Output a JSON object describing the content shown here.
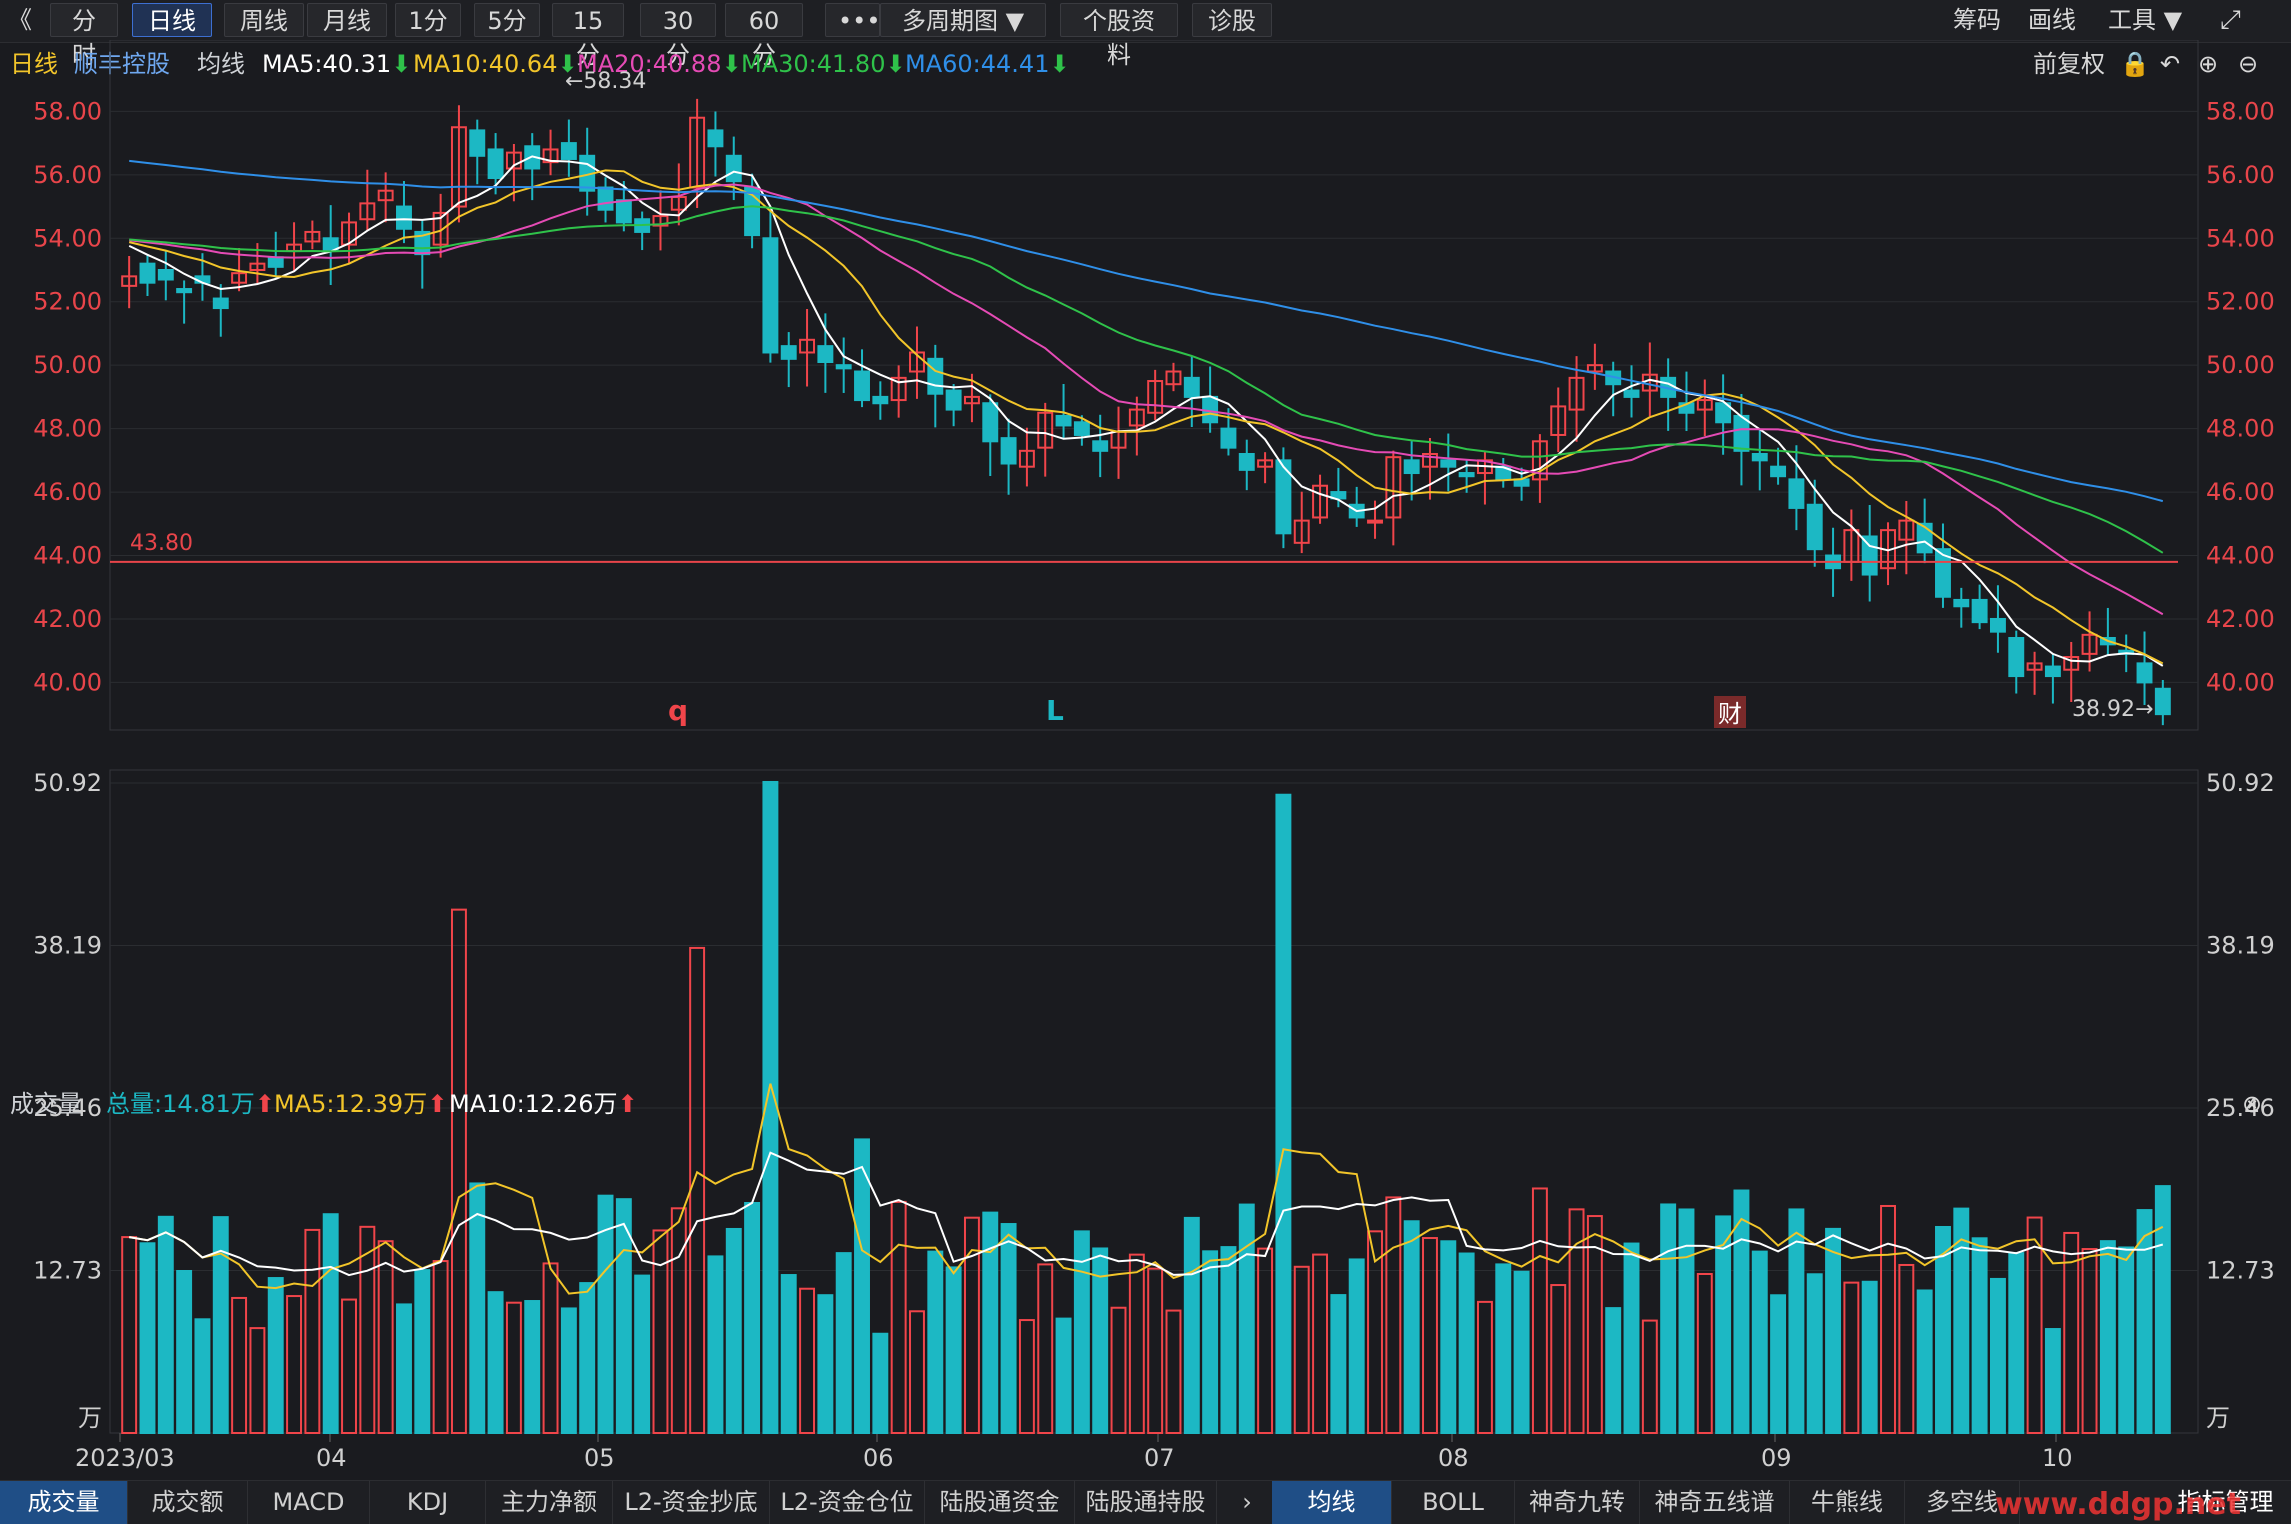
{
  "toolbar": {
    "back": "《",
    "buttons": [
      "分时",
      "日线",
      "周线",
      "月线",
      "1分",
      "5分",
      "15分",
      "30分",
      "60分",
      "•••",
      "多周期图 ▼",
      "个股资料",
      "诊股"
    ],
    "active_index": 1,
    "right": [
      "筹码",
      "画线",
      "工具 ▼"
    ]
  },
  "info": {
    "period": "日线",
    "stock": "顺丰控股",
    "ma_label": "均线",
    "ma5": "MA5:40.31",
    "ma10": "MA10:40.64",
    "ma20": "MA20:40.88",
    "ma30": "MA30:41.80",
    "ma60": "MA60:44.41",
    "fq": "前复权"
  },
  "colors": {
    "up": "#f0454a",
    "down": "#1cb8c4",
    "ma5": "#ffffff",
    "ma10": "#f2c52a",
    "ma20": "#e54bb5",
    "ma30": "#2fc24a",
    "ma60": "#2f8fe8",
    "axis": "#e8454a"
  },
  "volume_bar": {
    "title": "成交量",
    "total": "总量:14.81万",
    "ma5": "MA5:12.39万",
    "ma10": "MA10:12.26万"
  },
  "price_axis": [
    "58.00",
    "56.00",
    "54.00",
    "52.00",
    "50.00",
    "48.00",
    "46.00",
    "44.00",
    "42.00",
    "40.00"
  ],
  "volume_axis": [
    "50.92",
    "38.19",
    "25.46",
    "12.73",
    "万"
  ],
  "x_axis": [
    "2023/03",
    "04",
    "05",
    "06",
    "07",
    "08",
    "09",
    "10"
  ],
  "annotations": {
    "high": "←58.34",
    "low": "38.92→",
    "hline": "43.80",
    "mark_q": "q",
    "mark_l": "L",
    "mark_cai": "财"
  },
  "bottom_tabs": [
    "成交量",
    "成交额",
    "MACD",
    "KDJ",
    "主力净额",
    "L2-资金抄底",
    "L2-资金仓位",
    "陆股通资金",
    "陆股通持股"
  ],
  "bottom_tabs2": [
    "均线",
    "BOLL",
    "神奇九转",
    "神奇五线谱",
    "牛熊线",
    "多空线"
  ],
  "bottom_right": "指标管理",
  "watermark": "www.ddgp.net",
  "chart_data": {
    "type": "candlestick",
    "close_points": [
      [
        52.5,
        52.8
      ],
      [
        53.2,
        52.6
      ],
      [
        53.0,
        52.7
      ],
      [
        52.4,
        52.3
      ],
      [
        52.8,
        52.6
      ],
      [
        52.1,
        51.8
      ],
      [
        52.6,
        52.9
      ],
      [
        53.0,
        53.2
      ],
      [
        53.4,
        53.1
      ],
      [
        53.6,
        53.8
      ],
      [
        53.9,
        54.2
      ],
      [
        54.0,
        53.6
      ],
      [
        53.8,
        54.5
      ],
      [
        54.6,
        55.1
      ],
      [
        55.2,
        55.5
      ],
      [
        55.0,
        54.3
      ],
      [
        54.2,
        53.5
      ],
      [
        53.8,
        54.8
      ],
      [
        55.0,
        57.5
      ],
      [
        57.4,
        56.6
      ],
      [
        56.8,
        55.9
      ],
      [
        56.2,
        56.7
      ],
      [
        56.9,
        56.2
      ],
      [
        56.4,
        56.8
      ],
      [
        57.0,
        56.5
      ],
      [
        56.6,
        55.5
      ],
      [
        55.6,
        54.9
      ],
      [
        55.2,
        54.5
      ],
      [
        54.6,
        54.2
      ],
      [
        54.4,
        54.7
      ],
      [
        54.9,
        55.3
      ],
      [
        55.6,
        57.8
      ],
      [
        57.4,
        56.9
      ],
      [
        56.6,
        55.8
      ],
      [
        55.6,
        54.1
      ],
      [
        54.0,
        50.4
      ],
      [
        50.6,
        50.2
      ],
      [
        50.4,
        50.8
      ],
      [
        50.6,
        50.1
      ],
      [
        50.0,
        49.9
      ],
      [
        49.8,
        48.9
      ],
      [
        49.0,
        48.8
      ],
      [
        48.9,
        49.6
      ],
      [
        49.8,
        50.4
      ],
      [
        50.2,
        49.1
      ],
      [
        49.2,
        48.6
      ],
      [
        48.8,
        49.0
      ],
      [
        48.8,
        47.6
      ],
      [
        47.7,
        46.9
      ],
      [
        46.8,
        47.3
      ],
      [
        47.4,
        48.5
      ],
      [
        48.4,
        48.1
      ],
      [
        48.2,
        47.8
      ],
      [
        47.6,
        47.3
      ],
      [
        47.4,
        47.9
      ],
      [
        48.1,
        48.6
      ],
      [
        48.5,
        49.5
      ],
      [
        49.4,
        49.8
      ],
      [
        49.6,
        49.0
      ],
      [
        49.0,
        48.2
      ],
      [
        48.0,
        47.4
      ],
      [
        47.2,
        46.7
      ],
      [
        46.8,
        47.0
      ],
      [
        47.0,
        44.7
      ],
      [
        44.4,
        45.1
      ],
      [
        45.2,
        46.2
      ],
      [
        46.0,
        45.8
      ],
      [
        45.6,
        45.2
      ],
      [
        45.1,
        45.1
      ],
      [
        45.2,
        47.1
      ],
      [
        47.0,
        46.6
      ],
      [
        46.8,
        47.2
      ],
      [
        47.0,
        46.8
      ],
      [
        46.6,
        46.5
      ],
      [
        46.6,
        47.0
      ],
      [
        46.8,
        46.4
      ],
      [
        46.4,
        46.2
      ],
      [
        46.4,
        47.6
      ],
      [
        47.8,
        48.7
      ],
      [
        48.6,
        49.6
      ],
      [
        49.8,
        50.0
      ],
      [
        49.8,
        49.4
      ],
      [
        49.2,
        49.0
      ],
      [
        49.2,
        49.7
      ],
      [
        49.6,
        49.0
      ],
      [
        48.8,
        48.5
      ],
      [
        48.6,
        48.9
      ],
      [
        48.8,
        48.2
      ],
      [
        48.4,
        47.3
      ],
      [
        47.2,
        47.0
      ],
      [
        46.8,
        46.5
      ],
      [
        46.4,
        45.5
      ],
      [
        45.6,
        44.2
      ],
      [
        44.0,
        43.6
      ],
      [
        43.8,
        44.8
      ],
      [
        44.6,
        43.4
      ],
      [
        43.6,
        44.8
      ],
      [
        44.5,
        45.1
      ],
      [
        45.0,
        44.1
      ],
      [
        44.2,
        42.7
      ],
      [
        42.6,
        42.4
      ],
      [
        42.6,
        41.9
      ],
      [
        42.0,
        41.6
      ],
      [
        41.4,
        40.2
      ],
      [
        40.4,
        40.6
      ],
      [
        40.5,
        40.2
      ],
      [
        40.4,
        40.8
      ],
      [
        40.9,
        41.5
      ],
      [
        41.4,
        41.2
      ],
      [
        41.0,
        40.9
      ],
      [
        40.6,
        40.0
      ],
      [
        39.8,
        39.0
      ]
    ],
    "price_range": [
      38.5,
      58.8
    ],
    "volume_max": 50.92
  }
}
